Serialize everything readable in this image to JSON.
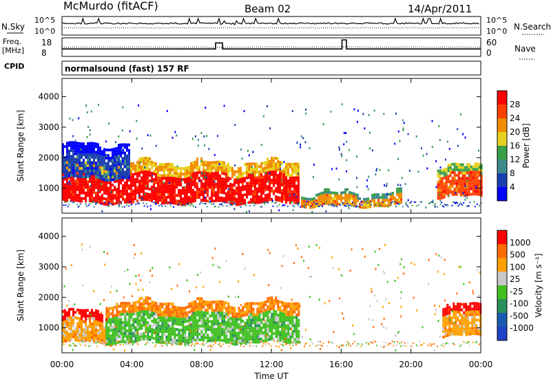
{
  "header": {
    "station": "McMurdo (fitACF)",
    "beam": "Beam 02",
    "date": "14/Apr/2011"
  },
  "panels": {
    "nsky_label": "N.Sky",
    "nsearch_label": "N.Search",
    "freq_label_1": "Freq.",
    "freq_label_2": "[MHz]",
    "nave_label": "Nave",
    "cpid_label": "CPID",
    "cpid_text": "normalsound (fast) 157 RF",
    "noise_ticks_left": [
      "10^5",
      "10^0"
    ],
    "noise_ticks_right": [
      "10^5",
      "10^0"
    ],
    "freq_ticks": [
      "18",
      "8"
    ],
    "nave_ticks": [
      "60",
      "0"
    ]
  },
  "colors": {
    "power": [
      "#0000ff",
      "#1a3fb0",
      "#3d8a8a",
      "#3aa048",
      "#e8d020",
      "#f08c00",
      "#ff4000",
      "#ff0000"
    ],
    "velocity": [
      "#ff0000",
      "#ff6a00",
      "#ffa000",
      "#c8c8c8",
      "#3fc020",
      "#2a8f5a",
      "#1a5ab0",
      "#2040c8"
    ]
  },
  "chart_data": {
    "type": "heatmap",
    "xlabel": "Time UT",
    "ylabel": "Slant Range [km]",
    "x_ticks": [
      "00:00",
      "04:00",
      "08:00",
      "12:00",
      "16:00",
      "20:00",
      "00:00"
    ],
    "y_ticks": [
      1000,
      2000,
      3000,
      4000
    ],
    "x_range_hours": [
      0,
      24
    ],
    "y_range_km": [
      180,
      4600
    ],
    "frequency_mhz_steps": [
      {
        "t": 0,
        "f": 12
      },
      {
        "t": 8.8,
        "f": 16
      },
      {
        "t": 9.2,
        "f": 12
      },
      {
        "t": 16.05,
        "f": 18
      },
      {
        "t": 16.3,
        "f": 12
      }
    ],
    "panels": [
      {
        "name": "Power",
        "colorbar_title": "Power [dB]",
        "colorbar_ticks": [
          "4",
          "8",
          "12",
          "16",
          "20",
          "24",
          "28"
        ],
        "regions_hours_km": [
          {
            "t0": 0,
            "t1": 13.6,
            "r0": 500,
            "r1": 1800,
            "level": 7
          },
          {
            "t0": 0,
            "t1": 3.8,
            "r0": 1300,
            "r1": 2400,
            "level": 1
          },
          {
            "t0": 13.7,
            "t1": 19.5,
            "r0": 400,
            "r1": 800,
            "level": 5
          },
          {
            "t0": 21.5,
            "t1": 24,
            "r0": 700,
            "r1": 1700,
            "level": 6
          }
        ]
      },
      {
        "name": "Velocity",
        "colorbar_title": "Velocity [m s⁻¹]",
        "colorbar_ticks": [
          "1000",
          "500",
          "100",
          "25",
          "-25",
          "-100",
          "-500",
          "-1000"
        ],
        "regions_hours_km": [
          {
            "t0": 0,
            "t1": 2.5,
            "r0": 500,
            "r1": 1500,
            "level": 2
          },
          {
            "t0": 2.5,
            "t1": 13.6,
            "r0": 500,
            "r1": 1800,
            "level": 4
          },
          {
            "t0": 21.8,
            "t1": 24,
            "r0": 700,
            "r1": 1700,
            "level": 2
          }
        ]
      }
    ]
  }
}
